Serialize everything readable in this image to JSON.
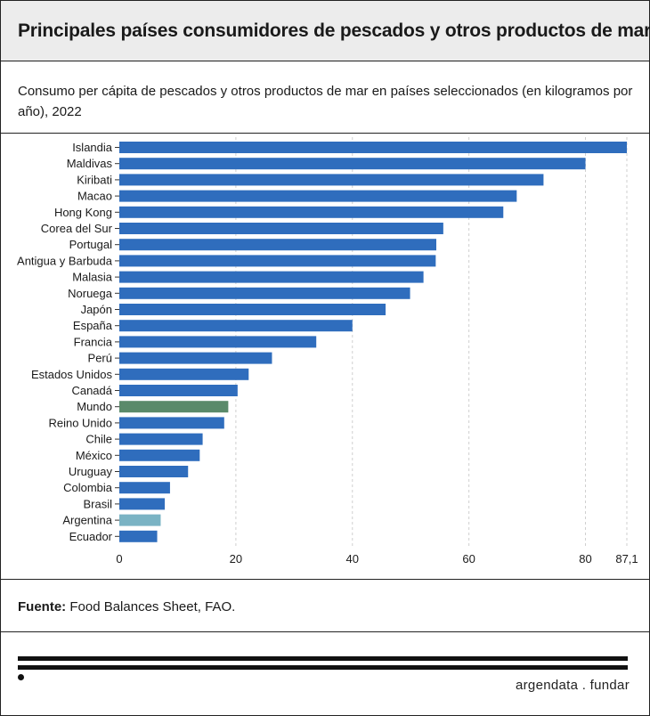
{
  "title": "Principales países consumidores de pescados y otros productos de mar",
  "subtitle": "Consumo per cápita de pescados y otros productos de mar en países seleccionados (en kilogramos por año), 2022",
  "source": {
    "label": "Fuente:",
    "text": "Food Balances Sheet, FAO."
  },
  "brand": "argendata . fundar",
  "colors": {
    "default": "#2f6dbd",
    "world": "#5a8a6a",
    "argentina": "#7ab3c4",
    "grid": "#cfcfcf"
  },
  "chart_data": {
    "type": "bar",
    "orientation": "horizontal",
    "categories": [
      "Islandia",
      "Maldivas",
      "Kiribati",
      "Macao",
      "Hong Kong",
      "Corea del Sur",
      "Portugal",
      "Antigua y Barbuda",
      "Malasia",
      "Noruega",
      "Japón",
      "España",
      "Francia",
      "Perú",
      "Estados Unidos",
      "Canadá",
      "Mundo",
      "Reino Unido",
      "Chile",
      "México",
      "Uruguay",
      "Colombia",
      "Brasil",
      "Argentina",
      "Ecuador"
    ],
    "values": [
      87.1,
      80.0,
      72.8,
      68.2,
      65.9,
      55.6,
      54.4,
      54.3,
      52.2,
      49.9,
      45.7,
      40.0,
      33.8,
      26.2,
      22.2,
      20.3,
      18.7,
      18.0,
      14.3,
      13.8,
      11.8,
      8.7,
      7.8,
      7.1,
      6.5
    ],
    "highlight": {
      "Mundo": "world",
      "Argentina": "argentina"
    },
    "xticks": [
      0,
      20,
      40,
      60,
      80
    ],
    "xtick_labels": [
      "0",
      "20",
      "40",
      "60",
      "80"
    ],
    "max_label": "87,1",
    "xlim": [
      0,
      87.1
    ],
    "grid": "vertical dashed",
    "xlabel": "",
    "ylabel": ""
  }
}
